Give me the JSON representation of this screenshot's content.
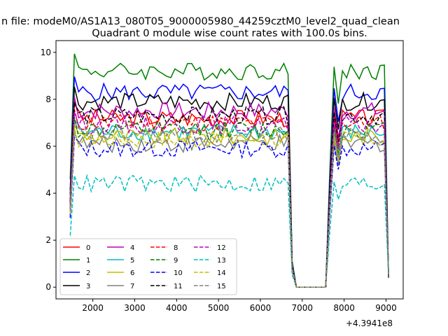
{
  "chart_data": {
    "type": "line",
    "suptitle": "n file: modeM0/AS1A13_080T05_9000005980_44259cztM0_level2_quad_clean",
    "title": "Quadrant 0 module wise count rates with 100.0s bins.",
    "xlabel": "",
    "ylabel": "",
    "x_offset_label": "+4.3941e8",
    "xlim": [
      1120,
      9410
    ],
    "ylim": [
      -0.5,
      10.5
    ],
    "xticks": [
      2000,
      3000,
      4000,
      5000,
      6000,
      7000,
      8000,
      9000
    ],
    "yticks": [
      0,
      2,
      4,
      6,
      8,
      10
    ],
    "grid": false,
    "legend": {
      "placement": "lower-left",
      "columns": 4
    },
    "segments": [
      {
        "x_start": 1460,
        "x_end": 6660,
        "step": 100
      },
      {
        "x_start": 6760,
        "x_end": 6860,
        "step": 100
      },
      {
        "x_start": 7560,
        "x_end": 7760,
        "step": 100
      },
      {
        "x_start": 7860,
        "x_end": 9060,
        "step": 100
      }
    ],
    "series": [
      {
        "name": "0",
        "color": "#ff0000",
        "dash": "solid",
        "level": 7.2
      },
      {
        "name": "1",
        "color": "#008000",
        "dash": "solid",
        "level": 9.2
      },
      {
        "name": "2",
        "color": "#0000ff",
        "dash": "solid",
        "level": 8.3
      },
      {
        "name": "3",
        "color": "#000000",
        "dash": "solid",
        "level": 7.9
      },
      {
        "name": "4",
        "color": "#bf00bf",
        "dash": "solid",
        "level": 7.5
      },
      {
        "name": "5",
        "color": "#00bfbf",
        "dash": "solid",
        "level": 6.6
      },
      {
        "name": "6",
        "color": "#bfbf00",
        "dash": "solid",
        "level": 6.4
      },
      {
        "name": "7",
        "color": "#808080",
        "dash": "solid",
        "level": 6.1
      },
      {
        "name": "8",
        "color": "#ff0000",
        "dash": "dashed",
        "level": 7.0
      },
      {
        "name": "9",
        "color": "#008000",
        "dash": "dashed",
        "level": 6.7
      },
      {
        "name": "10",
        "color": "#0000ff",
        "dash": "dashed",
        "level": 5.9
      },
      {
        "name": "11",
        "color": "#000000",
        "dash": "dashed",
        "level": 7.3
      },
      {
        "name": "12",
        "color": "#bf00bf",
        "dash": "dashed",
        "level": 6.9
      },
      {
        "name": "13",
        "color": "#00bfbf",
        "dash": "dashed",
        "level": 4.4
      },
      {
        "name": "14",
        "color": "#bfbf00",
        "dash": "dashed",
        "level": 6.3
      },
      {
        "name": "15",
        "color": "#808080",
        "dash": "dashed",
        "level": 6.5
      }
    ]
  }
}
